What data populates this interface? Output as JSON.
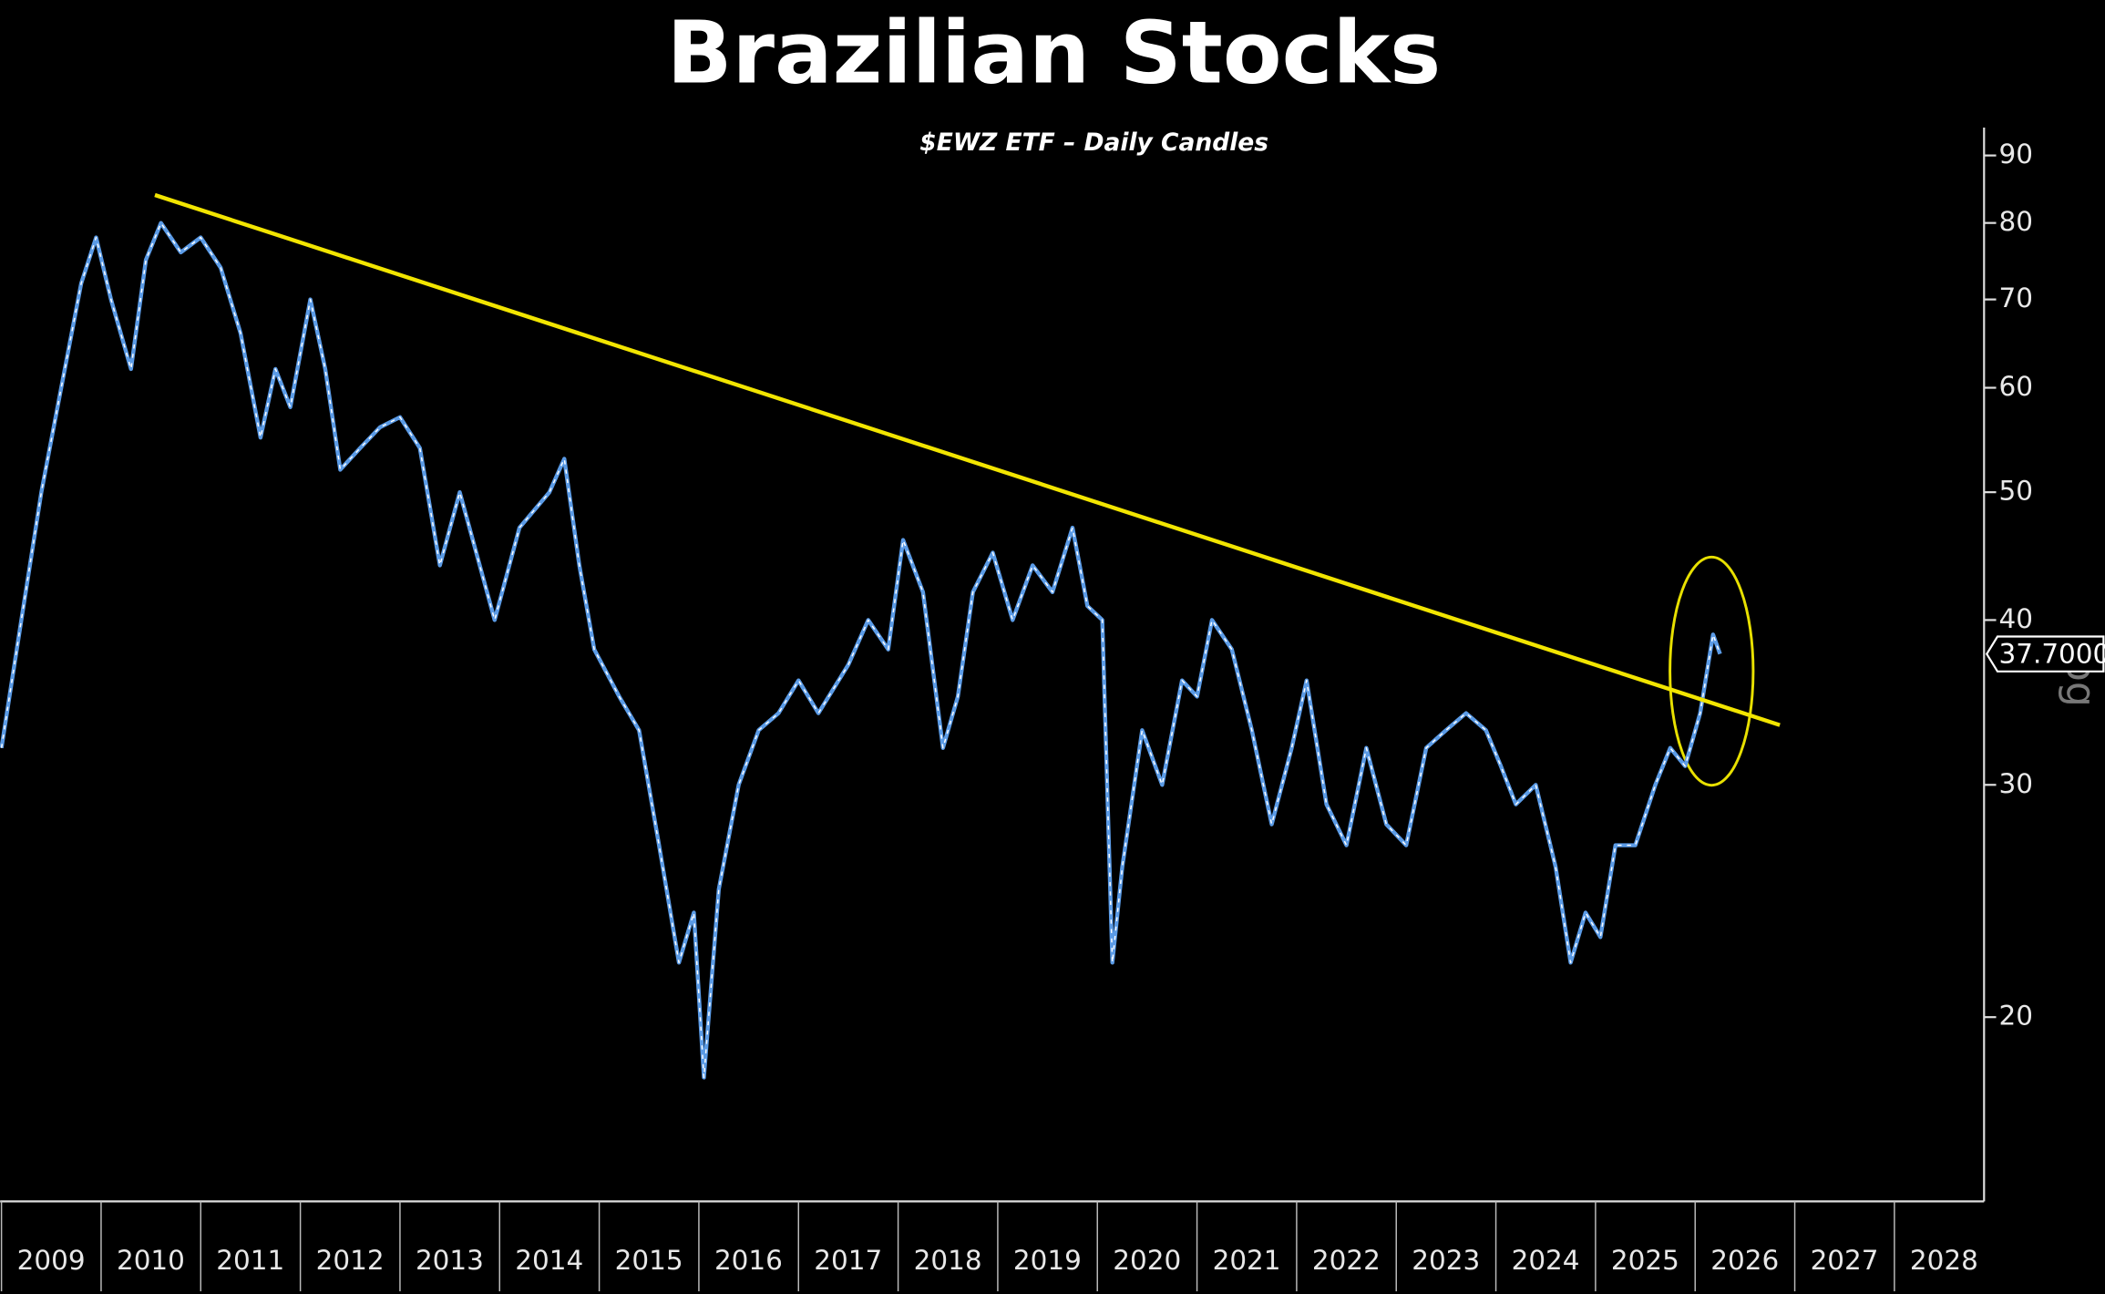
{
  "chart_data": {
    "type": "line",
    "title": "Brazilian Stocks",
    "subtitle": "$EWZ ETF – Daily Candles",
    "scale_label": "Log",
    "log_scale": true,
    "xlim": [
      2009,
      2028.9
    ],
    "ylim": [
      14.5,
      94.5
    ],
    "xticks": [
      {
        "value": 2009,
        "label": "2009"
      },
      {
        "value": 2010,
        "label": "2010"
      },
      {
        "value": 2011,
        "label": "2011"
      },
      {
        "value": 2012,
        "label": "2012"
      },
      {
        "value": 2013,
        "label": "2013"
      },
      {
        "value": 2014,
        "label": "2014"
      },
      {
        "value": 2015,
        "label": "2015"
      },
      {
        "value": 2016,
        "label": "2016"
      },
      {
        "value": 2017,
        "label": "2017"
      },
      {
        "value": 2018,
        "label": "2018"
      },
      {
        "value": 2019,
        "label": "2019"
      },
      {
        "value": 2020,
        "label": "2020"
      },
      {
        "value": 2021,
        "label": "2021"
      },
      {
        "value": 2022,
        "label": "2022"
      },
      {
        "value": 2023,
        "label": "2023"
      },
      {
        "value": 2024,
        "label": "2024"
      },
      {
        "value": 2025,
        "label": "2025"
      },
      {
        "value": 2026,
        "label": "2026"
      },
      {
        "value": 2027,
        "label": "2027"
      },
      {
        "value": 2028,
        "label": "2028"
      }
    ],
    "yticks": [
      20,
      30,
      40,
      50,
      60,
      70,
      80,
      90
    ],
    "series": [
      {
        "name": "EWZ",
        "color": "#5b9be6",
        "x": [
          2009.0,
          2009.2,
          2009.4,
          2009.6,
          2009.8,
          2009.95,
          2010.1,
          2010.3,
          2010.45,
          2010.6,
          2010.8,
          2011.0,
          2011.2,
          2011.4,
          2011.6,
          2011.75,
          2011.9,
          2012.1,
          2012.25,
          2012.4,
          2012.6,
          2012.8,
          2013.0,
          2013.2,
          2013.4,
          2013.6,
          2013.8,
          2013.95,
          2014.2,
          2014.5,
          2014.65,
          2014.8,
          2014.95,
          2015.2,
          2015.4,
          2015.6,
          2015.8,
          2015.95,
          2016.05,
          2016.2,
          2016.4,
          2016.6,
          2016.8,
          2017.0,
          2017.2,
          2017.5,
          2017.7,
          2017.9,
          2018.05,
          2018.25,
          2018.45,
          2018.6,
          2018.75,
          2018.95,
          2019.15,
          2019.35,
          2019.55,
          2019.75,
          2019.9,
          2020.05,
          2020.15,
          2020.25,
          2020.45,
          2020.65,
          2020.85,
          2021.0,
          2021.15,
          2021.35,
          2021.55,
          2021.75,
          2021.95,
          2022.1,
          2022.3,
          2022.5,
          2022.7,
          2022.9,
          2023.1,
          2023.3,
          2023.5,
          2023.7,
          2023.9,
          2024.05,
          2024.2,
          2024.4,
          2024.6,
          2024.75,
          2024.9,
          2025.05,
          2025.2,
          2025.4,
          2025.6,
          2025.75,
          2025.9,
          2026.05,
          2026.18,
          2026.25
        ],
        "values": [
          32,
          40,
          50,
          60,
          72,
          78,
          70,
          62,
          75,
          80,
          76,
          78,
          74,
          66,
          55,
          62,
          58,
          70,
          62,
          52,
          54,
          56,
          57,
          54,
          44,
          50,
          44,
          40,
          47,
          50,
          53,
          44,
          38,
          35,
          33,
          27,
          22,
          24,
          18,
          25,
          30,
          33,
          34,
          36,
          34,
          37,
          40,
          38,
          46,
          42,
          32,
          35,
          42,
          45,
          40,
          44,
          42,
          47,
          41,
          40,
          22,
          26,
          33,
          30,
          36,
          35,
          40,
          38,
          33,
          28,
          32,
          36,
          29,
          27,
          32,
          28,
          27,
          32,
          33,
          34,
          33,
          31,
          29,
          30,
          26,
          22,
          24,
          23,
          27,
          27,
          30,
          32,
          31,
          34,
          39,
          37.7
        ]
      }
    ],
    "trendline": {
      "color": "#f2e500",
      "x": [
        2010.54,
        2026.85
      ],
      "y": [
        84,
        33.3
      ]
    },
    "last_price": {
      "value": 37.7,
      "label": "37.7000"
    }
  }
}
